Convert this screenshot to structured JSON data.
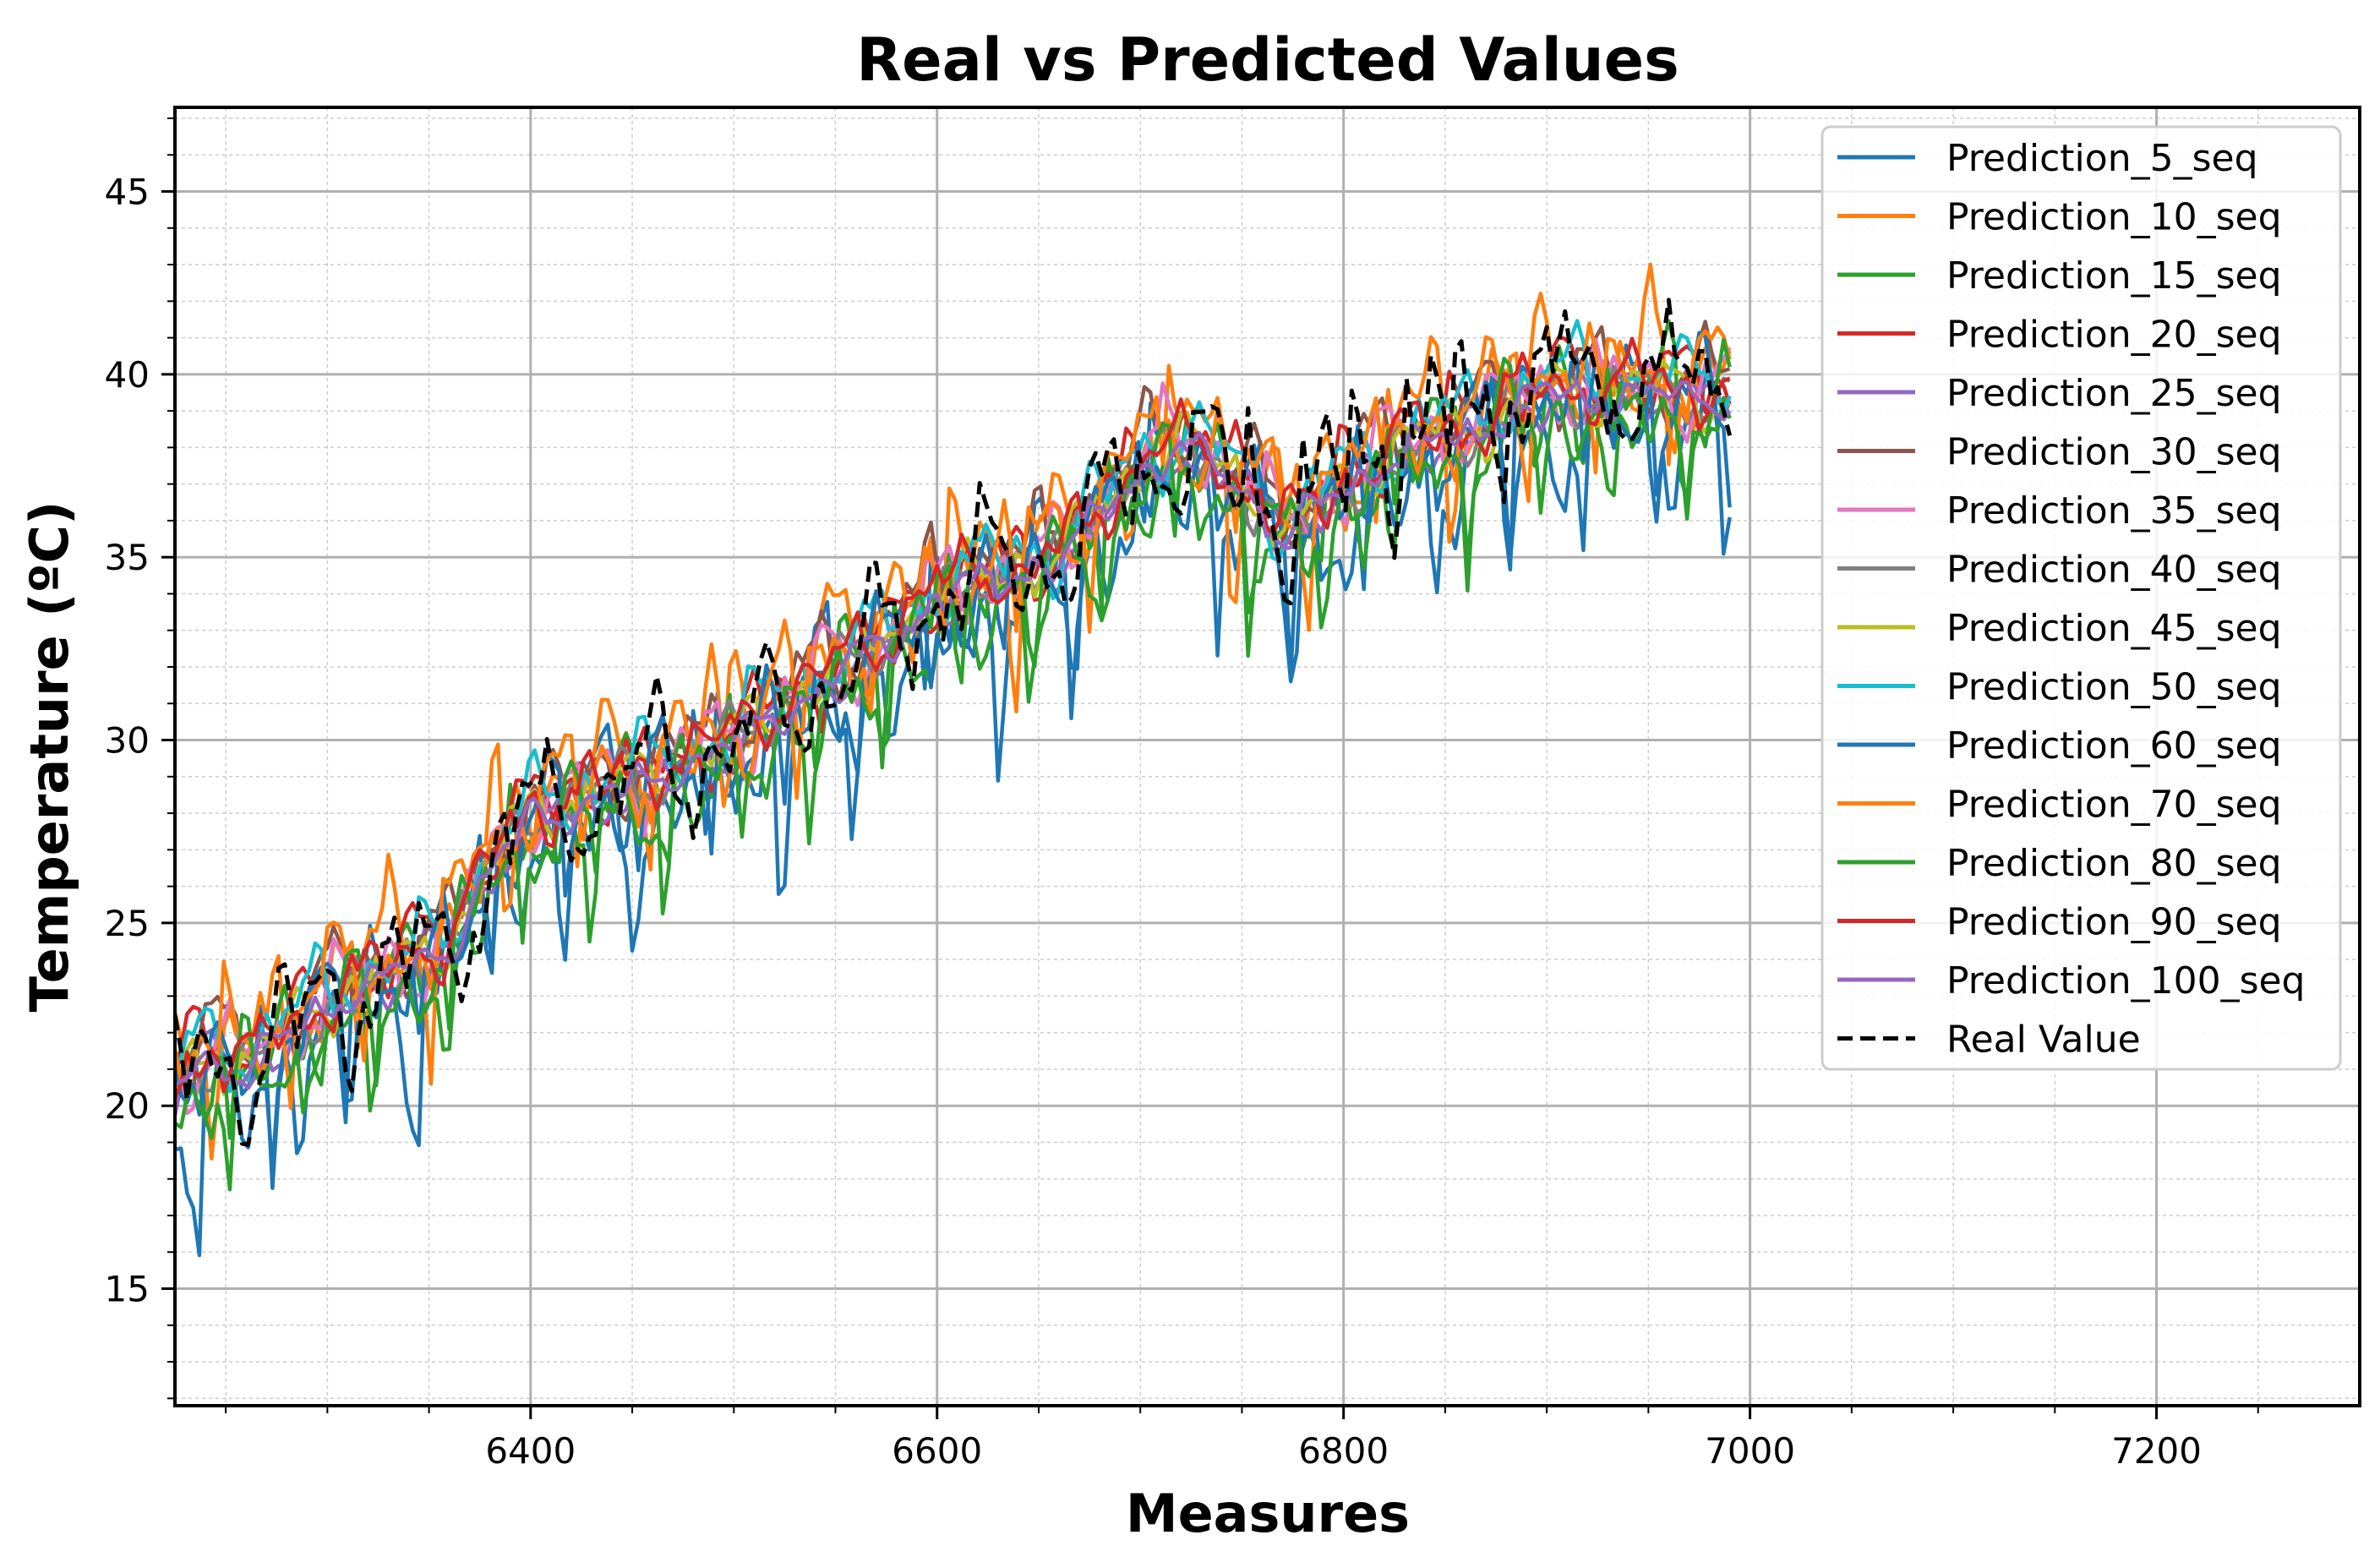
{
  "chart_data": {
    "type": "line",
    "title": "Real vs Predicted Values",
    "xlabel": "Measures",
    "ylabel": "Temperature (ºC)",
    "xlim": [
      6225,
      7300
    ],
    "ylim": [
      11.8,
      47.3
    ],
    "xticks": [
      6400,
      6600,
      6800,
      7000,
      7200
    ],
    "yticks": [
      15,
      20,
      25,
      30,
      35,
      40,
      45
    ],
    "grid": true,
    "minor_grid": true,
    "legend_position": "top-right",
    "x_range": [
      6225,
      6990
    ],
    "series": [
      {
        "name": "Prediction_5_seq",
        "color": "#1f77b4",
        "dash": false,
        "noise": 1.6,
        "offset": -0.6
      },
      {
        "name": "Prediction_10_seq",
        "color": "#ff7f0e",
        "dash": false,
        "noise": 1.3,
        "offset": 0.8
      },
      {
        "name": "Prediction_15_seq",
        "color": "#2ca02c",
        "dash": false,
        "noise": 1.2,
        "offset": -0.4
      },
      {
        "name": "Prediction_20_seq",
        "color": "#d62728",
        "dash": false,
        "noise": 0.8,
        "offset": 0.3
      },
      {
        "name": "Prediction_25_seq",
        "color": "#9467bd",
        "dash": false,
        "noise": 0.5,
        "offset": -0.2
      },
      {
        "name": "Prediction_30_seq",
        "color": "#8c564b",
        "dash": false,
        "noise": 0.9,
        "offset": 0.5
      },
      {
        "name": "Prediction_35_seq",
        "color": "#e377c2",
        "dash": false,
        "noise": 0.9,
        "offset": 0.2
      },
      {
        "name": "Prediction_40_seq",
        "color": "#7f7f7f",
        "dash": false,
        "noise": 0.6,
        "offset": 0.0
      },
      {
        "name": "Prediction_45_seq",
        "color": "#bcbd22",
        "dash": false,
        "noise": 0.6,
        "offset": 0.1
      },
      {
        "name": "Prediction_50_seq",
        "color": "#17becf",
        "dash": false,
        "noise": 0.8,
        "offset": 0.4
      },
      {
        "name": "Prediction_60_seq",
        "color": "#1f77b4",
        "dash": false,
        "noise": 1.1,
        "offset": -0.3
      },
      {
        "name": "Prediction_70_seq",
        "color": "#ff7f0e",
        "dash": false,
        "noise": 1.0,
        "offset": 0.6
      },
      {
        "name": "Prediction_80_seq",
        "color": "#2ca02c",
        "dash": false,
        "noise": 1.0,
        "offset": -0.5
      },
      {
        "name": "Prediction_90_seq",
        "color": "#d62728",
        "dash": false,
        "noise": 0.7,
        "offset": 0.2
      },
      {
        "name": "Prediction_100_seq",
        "color": "#9467bd",
        "dash": false,
        "noise": 0.4,
        "offset": -0.1
      },
      {
        "name": "Real Value",
        "color": "#000000",
        "dash": true,
        "noise": 1.4,
        "offset": 0.0
      }
    ],
    "trend": {
      "x": [
        6225,
        6240,
        6260,
        6280,
        6300,
        6330,
        6360,
        6380,
        6400,
        6430,
        6460,
        6500,
        6540,
        6580,
        6600,
        6630,
        6660,
        6700,
        6720,
        6740,
        6760,
        6770,
        6800,
        6830,
        6860,
        6900,
        6940,
        6990
      ],
      "y": [
        20.5,
        21.5,
        21.0,
        22.0,
        23.0,
        23.5,
        24.5,
        26.5,
        28.0,
        28.5,
        29.0,
        30.0,
        31.5,
        33.0,
        34.0,
        34.5,
        35.0,
        37.5,
        38.0,
        37.5,
        36.5,
        35.5,
        37.0,
        38.0,
        38.5,
        39.5,
        39.5,
        39.5
      ]
    }
  }
}
